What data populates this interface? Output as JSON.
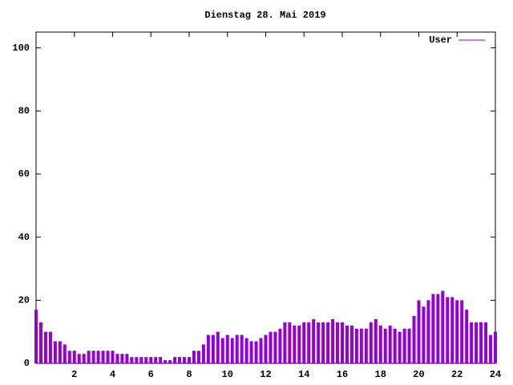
{
  "chart_data": {
    "type": "impulse",
    "title": "Dienstag 28. Mai 2019",
    "series": [
      {
        "name": "User",
        "color": "#9400d3",
        "x": [
          0,
          0.25,
          0.5,
          0.75,
          1,
          1.25,
          1.5,
          1.75,
          2,
          2.25,
          2.5,
          2.75,
          3,
          3.25,
          3.5,
          3.75,
          4,
          4.25,
          4.5,
          4.75,
          5,
          5.25,
          5.5,
          5.75,
          6,
          6.25,
          6.5,
          6.75,
          7,
          7.25,
          7.5,
          7.75,
          8,
          8.25,
          8.5,
          8.75,
          9,
          9.25,
          9.5,
          9.75,
          10,
          10.25,
          10.5,
          10.75,
          11,
          11.25,
          11.5,
          11.75,
          12,
          12.25,
          12.5,
          12.75,
          13,
          13.25,
          13.5,
          13.75,
          14,
          14.25,
          14.5,
          14.75,
          15,
          15.25,
          15.5,
          15.75,
          16,
          16.25,
          16.5,
          16.75,
          17,
          17.25,
          17.5,
          17.75,
          18,
          18.25,
          18.5,
          18.75,
          19,
          19.25,
          19.5,
          19.75,
          20,
          20.25,
          20.5,
          20.75,
          21,
          21.25,
          21.5,
          21.75,
          22,
          22.25,
          22.5,
          22.75,
          23,
          23.25,
          23.5,
          23.75,
          24
        ],
        "values": [
          17,
          13,
          10,
          10,
          7,
          7,
          6,
          4,
          4,
          3,
          3,
          4,
          4,
          4,
          4,
          4,
          4,
          3,
          3,
          3,
          2,
          2,
          2,
          2,
          2,
          2,
          2,
          1,
          1,
          2,
          2,
          2,
          2,
          4,
          4,
          6,
          9,
          9,
          10,
          8,
          9,
          8,
          9,
          9,
          8,
          7,
          7,
          8,
          9,
          10,
          10,
          11,
          13,
          13,
          12,
          12,
          13,
          13,
          14,
          13,
          13,
          13,
          14,
          13,
          13,
          12,
          12,
          11,
          11,
          11,
          13,
          14,
          12,
          11,
          12,
          11,
          10,
          11,
          11,
          15,
          20,
          18,
          20,
          22,
          22,
          23,
          21,
          21,
          20,
          20,
          17,
          13,
          13,
          13,
          13,
          9,
          10
        ]
      }
    ],
    "xlim": [
      0,
      24
    ],
    "xticks": [
      2,
      4,
      6,
      8,
      10,
      12,
      14,
      16,
      18,
      20,
      22,
      24
    ],
    "ylim": [
      0,
      105
    ],
    "yticks": [
      0,
      20,
      40,
      60,
      80,
      100
    ],
    "legend": "top-right"
  }
}
